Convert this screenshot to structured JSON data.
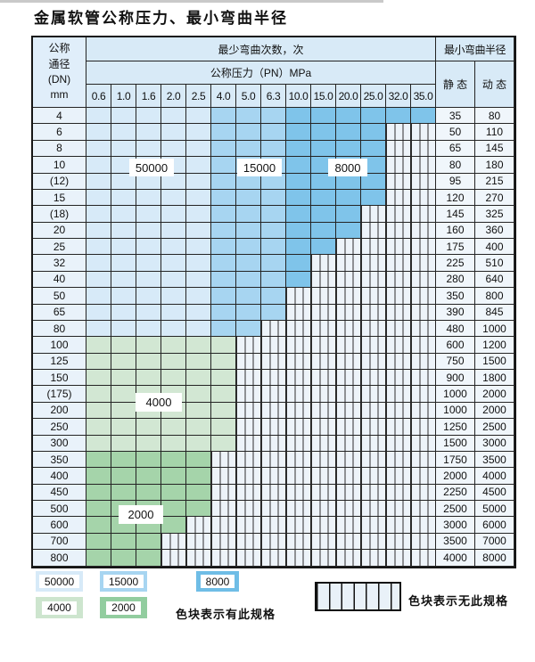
{
  "title": "金属软管公称压力、最小弯曲半径",
  "table": {
    "header": {
      "dn_lines": [
        "公称",
        "通径",
        "(DN)",
        "mm"
      ],
      "cycles_title": "最少弯曲次数，次",
      "pressure_title": "公称压力（PN）MPa",
      "pn_columns": [
        "0.6",
        "1.0",
        "1.6",
        "2.0",
        "2.5",
        "4.0",
        "5.0",
        "6.3",
        "10.0",
        "15.0",
        "20.0",
        "25.0",
        "32.0",
        "35.0"
      ],
      "radius_title": "最小弯曲半径",
      "static_label": "静 态",
      "dynamic_label": "动 态"
    },
    "zone_labels": [
      {
        "text": "50000"
      },
      {
        "text": "15000"
      },
      {
        "text": "8000"
      },
      {
        "text": "4000"
      },
      {
        "text": "2000"
      }
    ],
    "rows": [
      {
        "dn": "4",
        "type": "blue",
        "max_col": 13,
        "static": "35",
        "dynamic": "80"
      },
      {
        "dn": "6",
        "type": "blue",
        "max_col": 11,
        "static": "50",
        "dynamic": "110"
      },
      {
        "dn": "8",
        "type": "blue",
        "max_col": 11,
        "static": "65",
        "dynamic": "145"
      },
      {
        "dn": "10",
        "type": "blue",
        "max_col": 11,
        "static": "80",
        "dynamic": "180"
      },
      {
        "dn": "(12)",
        "type": "blue",
        "max_col": 11,
        "static": "95",
        "dynamic": "215"
      },
      {
        "dn": "15",
        "type": "blue",
        "max_col": 11,
        "static": "120",
        "dynamic": "270"
      },
      {
        "dn": "(18)",
        "type": "blue",
        "max_col": 10,
        "static": "145",
        "dynamic": "325"
      },
      {
        "dn": "20",
        "type": "blue",
        "max_col": 10,
        "static": "160",
        "dynamic": "360"
      },
      {
        "dn": "25",
        "type": "blue",
        "max_col": 9,
        "static": "175",
        "dynamic": "400"
      },
      {
        "dn": "32",
        "type": "blue",
        "max_col": 8,
        "static": "225",
        "dynamic": "510"
      },
      {
        "dn": "40",
        "type": "blue",
        "max_col": 8,
        "static": "280",
        "dynamic": "640"
      },
      {
        "dn": "50",
        "type": "blue",
        "max_col": 7,
        "static": "350",
        "dynamic": "800"
      },
      {
        "dn": "65",
        "type": "blue",
        "max_col": 7,
        "static": "390",
        "dynamic": "845"
      },
      {
        "dn": "80",
        "type": "blue",
        "max_col": 6,
        "static": "480",
        "dynamic": "1000"
      },
      {
        "dn": "100",
        "type": "g4000",
        "max_col": 5,
        "static": "600",
        "dynamic": "1200"
      },
      {
        "dn": "125",
        "type": "g4000",
        "max_col": 5,
        "static": "750",
        "dynamic": "1500"
      },
      {
        "dn": "150",
        "type": "g4000",
        "max_col": 5,
        "static": "900",
        "dynamic": "1800"
      },
      {
        "dn": "(175)",
        "type": "g4000",
        "max_col": 5,
        "static": "1000",
        "dynamic": "2000"
      },
      {
        "dn": "200",
        "type": "g4000",
        "max_col": 5,
        "static": "1000",
        "dynamic": "2000"
      },
      {
        "dn": "250",
        "type": "g4000",
        "max_col": 5,
        "static": "1250",
        "dynamic": "2500"
      },
      {
        "dn": "300",
        "type": "g4000",
        "max_col": 5,
        "static": "1500",
        "dynamic": "3000"
      },
      {
        "dn": "350",
        "type": "g2000",
        "max_col": 4,
        "static": "1750",
        "dynamic": "3500"
      },
      {
        "dn": "400",
        "type": "g2000",
        "max_col": 4,
        "static": "2000",
        "dynamic": "4000"
      },
      {
        "dn": "450",
        "type": "g2000",
        "max_col": 4,
        "static": "2250",
        "dynamic": "4500"
      },
      {
        "dn": "500",
        "type": "g2000",
        "max_col": 4,
        "static": "2500",
        "dynamic": "5000"
      },
      {
        "dn": "600",
        "type": "g2000",
        "max_col": 3,
        "static": "3000",
        "dynamic": "6000"
      },
      {
        "dn": "700",
        "type": "g2000",
        "max_col": 2,
        "static": "3500",
        "dynamic": "7000"
      },
      {
        "dn": "800",
        "type": "g2000",
        "max_col": 2,
        "static": "4000",
        "dynamic": "8000"
      }
    ]
  },
  "colors": {
    "zones": {
      "z50000": "#d7eaf8",
      "z15000": "#a7d5f1",
      "z8000": "#7fc4ea",
      "z4000": "#d2e7d3",
      "z2000": "#a5d4aa"
    }
  },
  "legend": {
    "swatches": [
      {
        "label": "50000",
        "color": "#d7eaf8"
      },
      {
        "label": "15000",
        "color": "#a7d5f1"
      },
      {
        "label": "8000",
        "color": "#6fbde6"
      },
      {
        "label": "4000",
        "color": "#cde5ce"
      },
      {
        "label": "2000",
        "color": "#92cd9f"
      }
    ],
    "has_spec_text": "色块表示有此规格",
    "no_spec_text": "色块表示无此规格"
  }
}
